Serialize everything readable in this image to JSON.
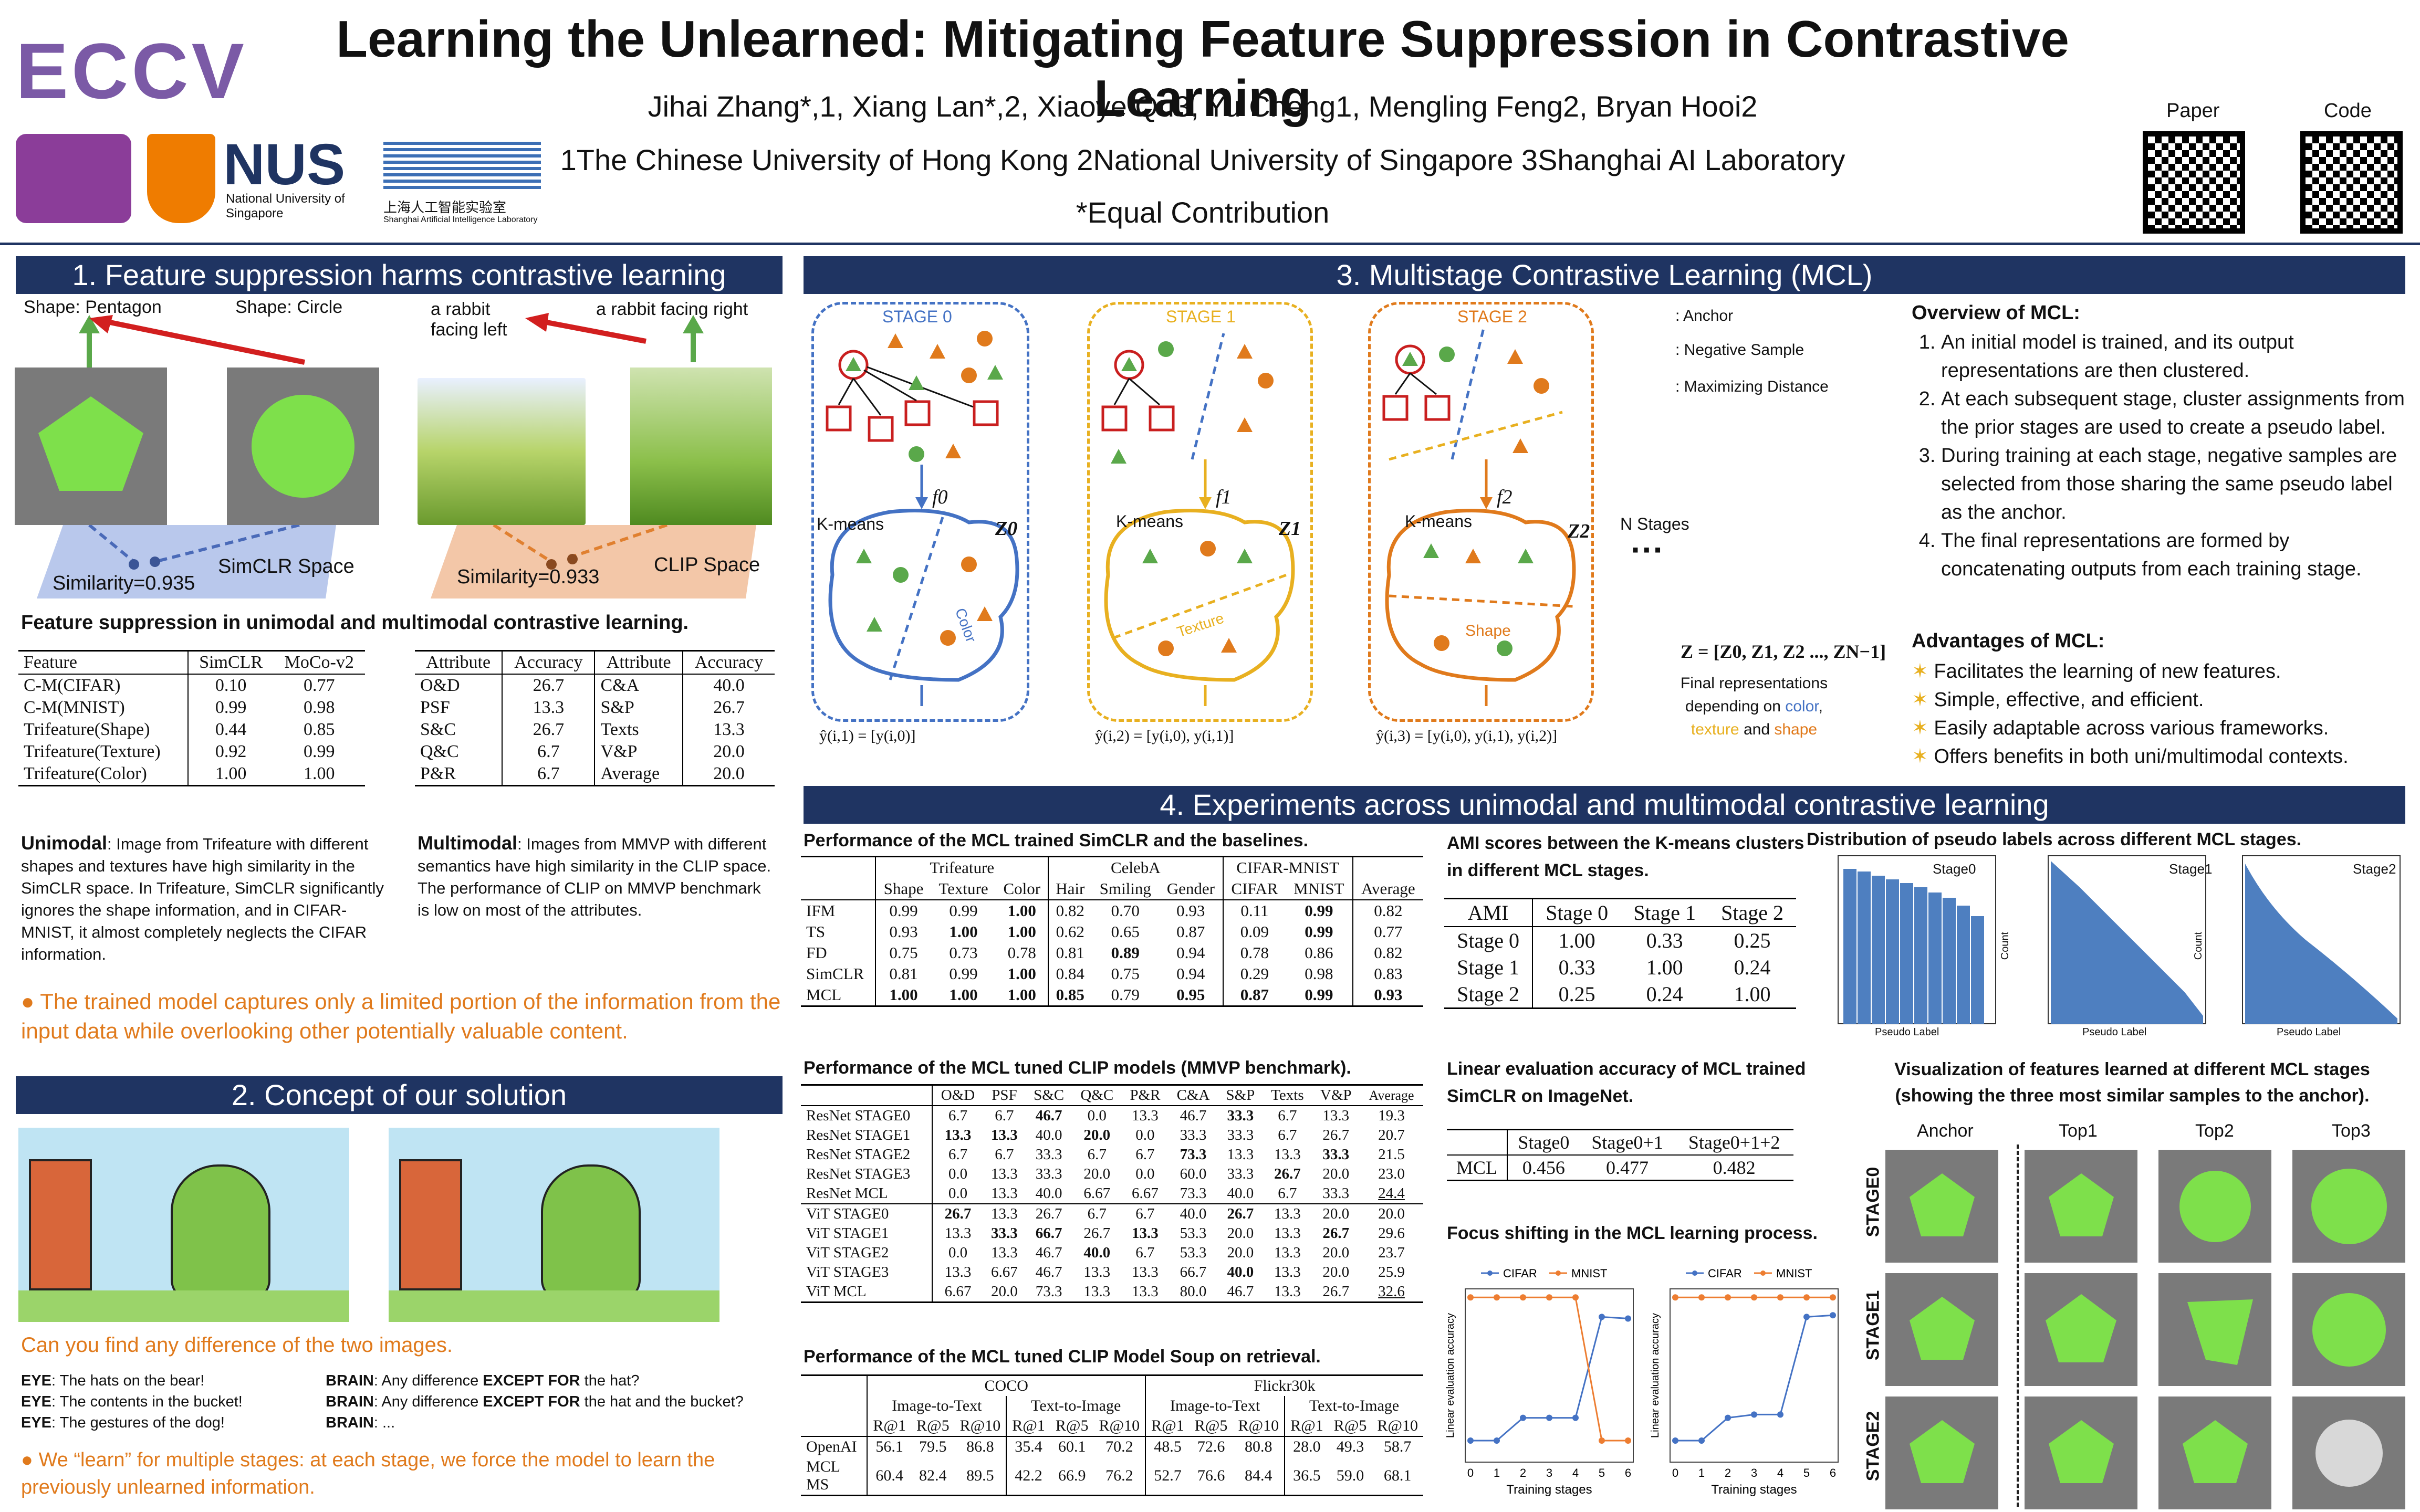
{
  "header": {
    "title": "Learning the Unlearned: Mitigating Feature Suppression in Contrastive Learning",
    "authors": "Jihai Zhang*,1, Xiang Lan*,2, Xiaoye Qu3, Yu Cheng1, Mengling Feng2, Bryan Hooi2",
    "affiliations": "1The Chinese University of Hong Kong 2National University of Singapore 3Shanghai AI Laboratory",
    "equal": "*Equal Contribution",
    "conf_logo": "ECCV",
    "nus": "NUS",
    "nus_sub": "National University of Singapore",
    "shlab": "上海人工智能实验室",
    "shlab_en": "Shanghai Artificial Intelligence Laboratory",
    "qr_paper": "Paper",
    "qr_code": "Code"
  },
  "s1": {
    "bar": "1. Feature suppression harms contrastive learning",
    "shape_pentagon": "Shape: Pentagon",
    "shape_circle": "Shape: Circle",
    "rabbit_left": "a rabbit facing left",
    "rabbit_right": "a rabbit facing right",
    "simclr_space": "SimCLR Space",
    "clip_space": "CLIP Space",
    "sim1": "Similarity=0.935",
    "sim2": "Similarity=0.933",
    "caption": "Feature suppression in unimodal and multimodal contrastive learning.",
    "t1_head": [
      "Feature",
      "SimCLR",
      "MoCo-v2"
    ],
    "t1_rows": [
      [
        "C-M(CIFAR)",
        "0.10",
        "0.77"
      ],
      [
        "C-M(MNIST)",
        "0.99",
        "0.98"
      ],
      [
        "Trifeature(Shape)",
        "0.44",
        "0.85"
      ],
      [
        "Trifeature(Texture)",
        "0.92",
        "0.99"
      ],
      [
        "Trifeature(Color)",
        "1.00",
        "1.00"
      ]
    ],
    "t2_head": [
      "Attribute",
      "Accuracy",
      "Attribute",
      "Accuracy"
    ],
    "t2_rows": [
      [
        "O&D",
        "26.7",
        "C&A",
        "40.0"
      ],
      [
        "PSF",
        "13.3",
        "S&P",
        "26.7"
      ],
      [
        "S&C",
        "26.7",
        "Texts",
        "13.3"
      ],
      [
        "Q&C",
        "6.7",
        "V&P",
        "20.0"
      ],
      [
        "P&R",
        "6.7",
        "Average",
        "20.0"
      ]
    ],
    "uni_label": "Unimodal",
    "uni_text": ": Image from Trifeature with different shapes and textures have high similarity in the SimCLR space. In Trifeature, SimCLR significantly ignores the shape information, and in CIFAR-MNIST, it almost completely neglects the CIFAR information.",
    "multi_label": "Multimodal",
    "multi_text": ": Images from MMVP with different semantics have high similarity in the CLIP space. The performance of CLIP on MMVP benchmark is low on most of the attributes.",
    "takeaway": "The trained model captures only a limited portion of the information from the input data while overlooking other potentially valuable content."
  },
  "s2": {
    "bar": "2. Concept of our solution",
    "question": "Can you find any difference of the two images.",
    "eye1": "EYE",
    "eye1_t": ": The hats on the bear!",
    "eye2": "EYE",
    "eye2_t": ": The contents in the bucket!",
    "eye3": "EYE",
    "eye3_t": ": The gestures of the dog!",
    "brain1": "BRAIN",
    "brain1_t": ": Any difference ",
    "except": "EXCEPT FOR",
    "brain1_t2": " the hat?",
    "brain2": "BRAIN",
    "brain2_t": ": Any difference ",
    "brain2_t2": " the hat and the bucket?",
    "brain3": "BRAIN",
    "brain3_t": ": ...",
    "takeaway": "We “learn” for multiple stages: at each stage, we force the model to learn the previously unlearned information."
  },
  "s3": {
    "bar": "3. Multistage Contrastive Learning (MCL)",
    "stage0": "STAGE 0",
    "stage1": "STAGE 1",
    "stage2": "STAGE 2",
    "kmeans": "K-means",
    "f0": "f0",
    "f1": "f1",
    "f2": "f2",
    "z0": "Z0",
    "z1": "Z1",
    "z2": "Z2",
    "color": "Color",
    "texture": "Texture",
    "shape": "Shape",
    "y0": "ŷ(i,1) = [y(i,0)]",
    "y1": "ŷ(i,2) = [y(i,0), y(i,1)]",
    "y2": "ŷ(i,3) = [y(i,0), y(i,1), y(i,2)]",
    "legend_anchor": ": Anchor",
    "legend_neg": ": Negative Sample",
    "legend_max": ": Maximizing Distance",
    "nstages": "N Stages",
    "dots": "···",
    "zformula": "Z = [Z0, Z1, Z2 ..., ZN−1]",
    "final1": "Final representations",
    "final2": "depending on ",
    "final_color": "color",
    "final_texture": "texture",
    "final_and": " and ",
    "final_shape": "shape",
    "overview_title": "Overview of MCL:",
    "overview": [
      "An initial model is trained, and its output representations are then clustered.",
      "At each subsequent stage, cluster assignments from the prior stages are used to create a pseudo label.",
      "During training at each stage, negative samples are selected from those sharing the same pseudo label as the anchor.",
      "The final representations are formed by concatenating outputs from each training stage."
    ],
    "adv_title": "Advantages of MCL:",
    "advantages": [
      "Facilitates the learning of new features.",
      "Simple, effective, and efficient.",
      "Easily adaptable across various frameworks.",
      "Offers benefits in both uni/multimodal contexts."
    ]
  },
  "s4": {
    "bar": "4. Experiments across unimodal and multimodal contrastive learning",
    "tA_cap": "Performance of the MCL trained SimCLR and the baselines.",
    "tA_groups": [
      "Trifeature",
      "CelebA",
      "CIFAR-MNIST"
    ],
    "tA_head": [
      "Shape",
      "Texture",
      "Color",
      "Hair",
      "Smiling",
      "Gender",
      "CIFAR",
      "MNIST",
      "Average"
    ],
    "tA_rows": [
      [
        "IFM",
        "0.99",
        "0.99",
        "1.00",
        "0.82",
        "0.70",
        "0.93",
        "0.11",
        "0.99",
        "0.82"
      ],
      [
        "TS",
        "0.93",
        "1.00",
        "1.00",
        "0.62",
        "0.65",
        "0.87",
        "0.09",
        "0.99",
        "0.77"
      ],
      [
        "FD",
        "0.75",
        "0.73",
        "0.78",
        "0.81",
        "0.89",
        "0.94",
        "0.78",
        "0.86",
        "0.82"
      ],
      [
        "SimCLR",
        "0.81",
        "0.99",
        "1.00",
        "0.84",
        "0.75",
        "0.94",
        "0.29",
        "0.98",
        "0.83"
      ],
      [
        "MCL",
        "1.00",
        "1.00",
        "1.00",
        "0.85",
        "0.79",
        "0.95",
        "0.87",
        "0.99",
        "0.93"
      ]
    ],
    "tB_cap": "Performance of the MCL tuned CLIP models (MMVP benchmark).",
    "tB_head": [
      "O&D",
      "PSF",
      "S&C",
      "Q&C",
      "P&R",
      "C&A",
      "S&P",
      "Texts",
      "V&P",
      "Average"
    ],
    "tB_rows": [
      [
        "ResNet STAGE0",
        "6.7",
        "6.7",
        "46.7",
        "0.0",
        "13.3",
        "46.7",
        "33.3",
        "6.7",
        "13.3",
        "19.3"
      ],
      [
        "ResNet STAGE1",
        "13.3",
        "13.3",
        "40.0",
        "20.0",
        "0.0",
        "33.3",
        "33.3",
        "6.7",
        "26.7",
        "20.7"
      ],
      [
        "ResNet STAGE2",
        "6.7",
        "6.7",
        "33.3",
        "6.7",
        "6.7",
        "73.3",
        "13.3",
        "13.3",
        "33.3",
        "21.5"
      ],
      [
        "ResNet STAGE3",
        "0.0",
        "13.3",
        "33.3",
        "20.0",
        "0.0",
        "60.0",
        "33.3",
        "26.7",
        "20.0",
        "23.0"
      ],
      [
        "ResNet MCL",
        "0.0",
        "13.3",
        "40.0",
        "6.67",
        "6.67",
        "73.3",
        "40.0",
        "6.7",
        "33.3",
        "24.4"
      ],
      [
        "ViT STAGE0",
        "26.7",
        "13.3",
        "26.7",
        "6.7",
        "6.7",
        "40.0",
        "26.7",
        "13.3",
        "20.0",
        "20.0"
      ],
      [
        "ViT STAGE1",
        "13.3",
        "33.3",
        "66.7",
        "26.7",
        "13.3",
        "53.3",
        "20.0",
        "13.3",
        "26.7",
        "29.6"
      ],
      [
        "ViT STAGE2",
        "0.0",
        "13.3",
        "46.7",
        "40.0",
        "6.7",
        "53.3",
        "20.0",
        "13.3",
        "20.0",
        "23.7"
      ],
      [
        "ViT STAGE3",
        "13.3",
        "6.67",
        "46.7",
        "13.3",
        "13.3",
        "66.7",
        "40.0",
        "13.3",
        "20.0",
        "25.9"
      ],
      [
        "ViT MCL",
        "6.67",
        "20.0",
        "73.3",
        "13.3",
        "13.3",
        "80.0",
        "46.7",
        "13.3",
        "26.7",
        "32.6"
      ]
    ],
    "tC_cap": "Performance of the MCL tuned CLIP Model Soup on retrieval.",
    "tC_groups": [
      "COCO",
      "Flickr30k"
    ],
    "tC_sub": [
      "Image-to-Text",
      "Text-to-Image",
      "Image-to-Text",
      "Text-to-Image"
    ],
    "tC_head": [
      "R@1",
      "R@5",
      "R@10",
      "R@1",
      "R@5",
      "R@10",
      "R@1",
      "R@5",
      "R@10",
      "R@1",
      "R@5",
      "R@10"
    ],
    "tC_rows": [
      [
        "OpenAI",
        "56.1",
        "79.5",
        "86.8",
        "35.4",
        "60.1",
        "70.2",
        "48.5",
        "72.6",
        "80.8",
        "28.0",
        "49.3",
        "58.7"
      ],
      [
        "MCL MS",
        "60.4",
        "82.4",
        "89.5",
        "42.2",
        "66.9",
        "76.2",
        "52.7",
        "76.6",
        "84.4",
        "36.5",
        "59.0",
        "68.1"
      ]
    ],
    "tD_cap": "AMI scores between the K-means clusters in different MCL stages.",
    "tD_head": [
      "AMI",
      "Stage 0",
      "Stage 1",
      "Stage 2"
    ],
    "tD_rows": [
      [
        "Stage 0",
        "1.00",
        "0.33",
        "0.25"
      ],
      [
        "Stage 1",
        "0.33",
        "1.00",
        "0.24"
      ],
      [
        "Stage 2",
        "0.25",
        "0.24",
        "1.00"
      ]
    ],
    "tE_cap": "Linear evaluation accuracy of MCL trained SimCLR on ImageNet.",
    "tE_head": [
      "Stage0",
      "Stage0+1",
      "Stage0+1+2"
    ],
    "tE_rows": [
      [
        "MCL",
        "0.456",
        "0.477",
        "0.482"
      ]
    ],
    "dist_cap": "Distribution of pseudo labels across different MCL stages.",
    "dist_xlabel": "Pseudo Label",
    "dist_ylabel": "Count",
    "dist_stages": [
      "Stage0",
      "Stage1",
      "Stage2"
    ],
    "focus_cap": "Focus shifting in the MCL learning process.",
    "focus_legend": [
      "CIFAR",
      "MNIST"
    ],
    "focus_xlabel": "Training stages",
    "focus_ylabel": "Linear evaluation accuracy",
    "vis_cap": "Visualization of features learned at different MCL stages (showing the three most similar samples to the anchor).",
    "vis_cols": [
      "Anchor",
      "Top1",
      "Top2",
      "Top3"
    ],
    "vis_rows": [
      "STAGE0",
      "STAGE1",
      "STAGE2"
    ]
  },
  "chart_data": [
    {
      "type": "line",
      "title": "",
      "xlabel": "Training stages",
      "ylabel": "Linear evaluation accuracy",
      "x": [
        0,
        1,
        2,
        3,
        4,
        5,
        6
      ],
      "series": [
        {
          "name": "CIFAR",
          "values": [
            0.1,
            0.1,
            0.24,
            0.24,
            0.24,
            0.86,
            0.85
          ]
        },
        {
          "name": "MNIST",
          "values": [
            0.98,
            0.98,
            0.98,
            0.98,
            0.98,
            0.1,
            0.1
          ]
        }
      ],
      "xlim": [
        0,
        6
      ]
    },
    {
      "type": "line",
      "title": "",
      "xlabel": "Training stages",
      "ylabel": "Linear evaluation accuracy",
      "x": [
        0,
        1,
        2,
        3,
        4,
        5,
        6
      ],
      "series": [
        {
          "name": "CIFAR",
          "values": [
            0.1,
            0.1,
            0.24,
            0.26,
            0.26,
            0.86,
            0.87
          ]
        },
        {
          "name": "MNIST",
          "values": [
            0.98,
            0.98,
            0.98,
            0.98,
            0.98,
            0.98,
            0.98
          ]
        }
      ],
      "xlim": [
        0,
        6
      ]
    }
  ],
  "colors": {
    "bar": "#1f3462",
    "orange": "#e07a1c",
    "blue": "#4472c4",
    "gold": "#e8b020",
    "green": "#6fd64a",
    "gray": "#7a7a7a"
  }
}
